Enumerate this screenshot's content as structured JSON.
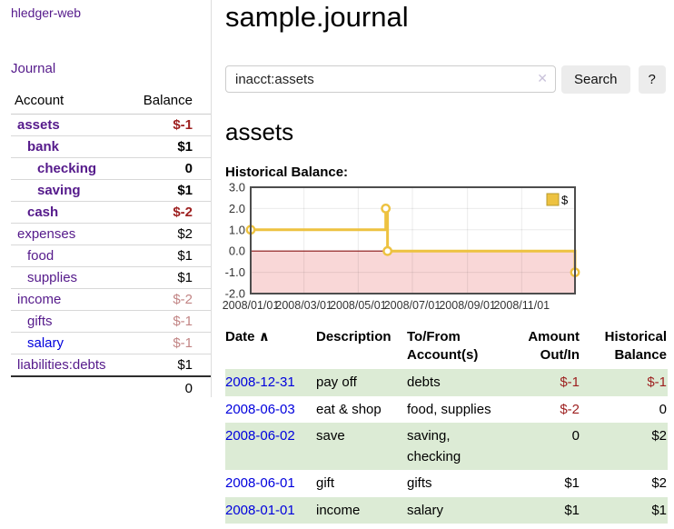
{
  "app": {
    "brand": "hledger-web"
  },
  "sidebar": {
    "nav_journal": "Journal",
    "accounts": {
      "col_account": "Account",
      "col_balance": "Balance",
      "rows": [
        {
          "label": "assets",
          "balance": "$-1"
        },
        {
          "label": "bank",
          "balance": "$1"
        },
        {
          "label": "checking",
          "balance": "0"
        },
        {
          "label": "saving",
          "balance": "$1"
        },
        {
          "label": "cash",
          "balance": "$-2"
        },
        {
          "label": "expenses",
          "balance": "$2"
        },
        {
          "label": "food",
          "balance": "$1"
        },
        {
          "label": "supplies",
          "balance": "$1"
        },
        {
          "label": "income",
          "balance": "$-2"
        },
        {
          "label": "gifts",
          "balance": "$-1"
        },
        {
          "label": "salary",
          "balance": "$-1"
        },
        {
          "label": "liabilities:debts",
          "balance": "$1"
        }
      ],
      "total": "0"
    }
  },
  "main": {
    "title": "sample.journal",
    "search": {
      "value": "inacct:assets",
      "clear_icon": "✕",
      "button": "Search",
      "help": "?"
    },
    "account_heading": "assets",
    "chart_label": "Historical Balance:",
    "register": {
      "h_date": "Date",
      "sort_icon": "∧",
      "h_desc": "Description",
      "h_tofrom": "To/From Account(s)",
      "h_amount": "Amount Out/In",
      "h_balance": "Historical Balance",
      "rows": [
        {
          "date": "2008-12-31",
          "desc": "pay off",
          "accounts": "debts",
          "amount": "$-1",
          "balance": "$-1"
        },
        {
          "date": "2008-06-03",
          "desc": "eat & shop",
          "accounts": "food, supplies",
          "amount": "$-2",
          "balance": "0"
        },
        {
          "date": "2008-06-02",
          "desc": "save",
          "accounts": "saving, checking",
          "amount": "0",
          "balance": "$2"
        },
        {
          "date": "2008-06-01",
          "desc": "gift",
          "accounts": "gifts",
          "amount": "$1",
          "balance": "$2"
        },
        {
          "date": "2008-01-01",
          "desc": "income",
          "accounts": "salary",
          "amount": "$1",
          "balance": "$1"
        }
      ]
    }
  },
  "chart_data": {
    "type": "line",
    "step": true,
    "title": "Historical Balance",
    "series": [
      {
        "name": "$",
        "color": "#EDC240",
        "points": [
          [
            "2008-01-01",
            1
          ],
          [
            "2008-06-01",
            2
          ],
          [
            "2008-06-03",
            0
          ],
          [
            "2008-12-31",
            -1
          ]
        ]
      }
    ],
    "x_range": [
      "2008-01-01",
      "2008-12-31"
    ],
    "y_range": [
      -2,
      3
    ],
    "y_ticks": [
      "3.0",
      "2.0",
      "1.0",
      "0.0",
      "-1.0",
      "-2.0"
    ],
    "x_ticks": [
      "2008/01/01",
      "2008/03/01",
      "2008/05/01",
      "2008/07/01",
      "2008/09/01",
      "2008/11/01"
    ],
    "zero_line_color": "#8b1616",
    "negative_region_color": "#f9d7d7",
    "grid_color": "rgba(0,0,0,0.08)",
    "border_color": "#4d4d4d",
    "legend": "$",
    "legend_position": "top-right"
  }
}
